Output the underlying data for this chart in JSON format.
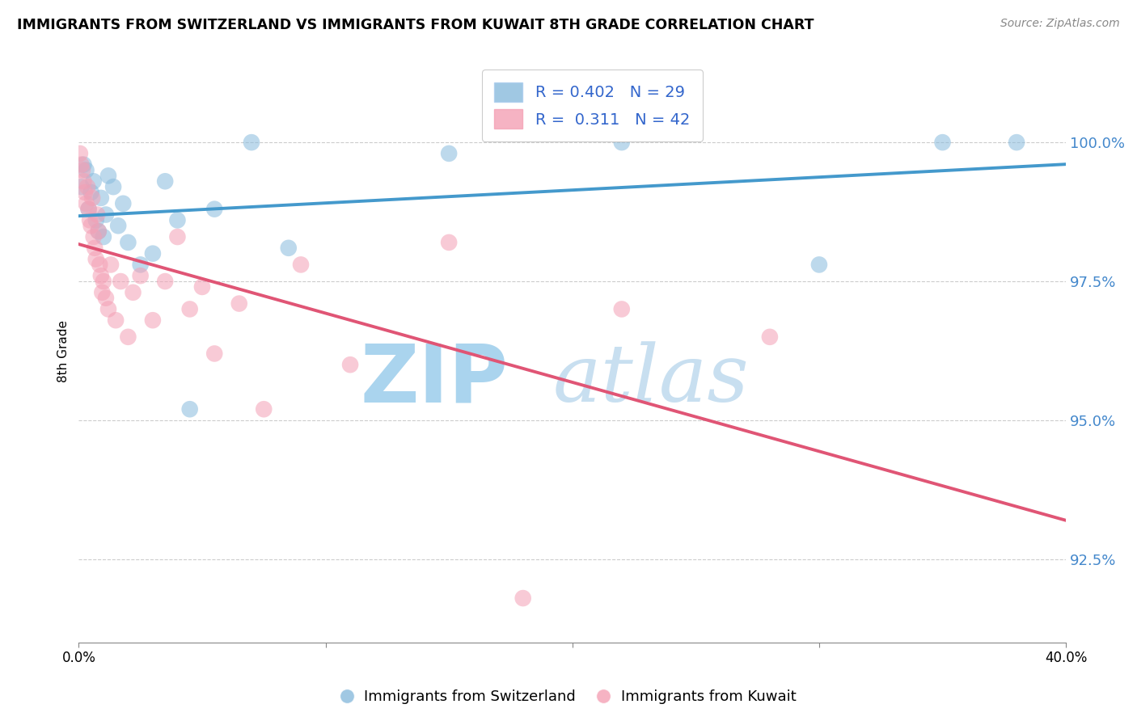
{
  "title": "IMMIGRANTS FROM SWITZERLAND VS IMMIGRANTS FROM KUWAIT 8TH GRADE CORRELATION CHART",
  "source": "Source: ZipAtlas.com",
  "ylabel": "8th Grade",
  "y_ticks": [
    92.5,
    95.0,
    97.5,
    100.0
  ],
  "y_tick_labels": [
    "92.5%",
    "95.0%",
    "97.5%",
    "100.0%"
  ],
  "x_min": 0.0,
  "x_max": 40.0,
  "y_min": 91.0,
  "y_max": 101.5,
  "legend_label_blue": "Immigrants from Switzerland",
  "legend_label_pink": "Immigrants from Kuwait",
  "R_blue": 0.402,
  "N_blue": 29,
  "R_pink": 0.311,
  "N_pink": 42,
  "color_blue": "#88bbdd",
  "color_pink": "#f4a0b5",
  "line_color_blue": "#4499cc",
  "line_color_pink": "#e05575",
  "scatter_blue_x": [
    0.1,
    0.2,
    0.3,
    0.4,
    0.5,
    0.6,
    0.7,
    0.8,
    0.9,
    1.0,
    1.1,
    1.2,
    1.4,
    1.6,
    1.8,
    2.0,
    2.5,
    3.0,
    3.5,
    4.0,
    4.5,
    5.5,
    7.0,
    8.5,
    15.0,
    22.0,
    30.0,
    35.0,
    38.0
  ],
  "scatter_blue_y": [
    99.2,
    99.6,
    99.5,
    98.8,
    99.1,
    99.3,
    98.6,
    98.4,
    99.0,
    98.3,
    98.7,
    99.4,
    99.2,
    98.5,
    98.9,
    98.2,
    97.8,
    98.0,
    99.3,
    98.6,
    95.2,
    98.8,
    100.0,
    98.1,
    99.8,
    100.0,
    97.8,
    100.0,
    100.0
  ],
  "scatter_pink_x": [
    0.05,
    0.1,
    0.15,
    0.2,
    0.25,
    0.3,
    0.35,
    0.4,
    0.45,
    0.5,
    0.55,
    0.6,
    0.65,
    0.7,
    0.75,
    0.8,
    0.85,
    0.9,
    0.95,
    1.0,
    1.1,
    1.2,
    1.3,
    1.5,
    1.7,
    2.0,
    2.2,
    2.5,
    3.0,
    3.5,
    4.0,
    4.5,
    5.0,
    5.5,
    6.5,
    7.5,
    9.0,
    11.0,
    15.0,
    18.0,
    22.0,
    28.0
  ],
  "scatter_pink_y": [
    99.8,
    99.6,
    99.5,
    99.3,
    99.1,
    98.9,
    99.2,
    98.8,
    98.6,
    98.5,
    99.0,
    98.3,
    98.1,
    97.9,
    98.7,
    98.4,
    97.8,
    97.6,
    97.3,
    97.5,
    97.2,
    97.0,
    97.8,
    96.8,
    97.5,
    96.5,
    97.3,
    97.6,
    96.8,
    97.5,
    98.3,
    97.0,
    97.4,
    96.2,
    97.1,
    95.2,
    97.8,
    96.0,
    98.2,
    91.8,
    97.0,
    96.5
  ],
  "background_color": "#ffffff",
  "watermark_zip": "ZIP",
  "watermark_atlas": "atlas",
  "watermark_color": "#cce5f5"
}
